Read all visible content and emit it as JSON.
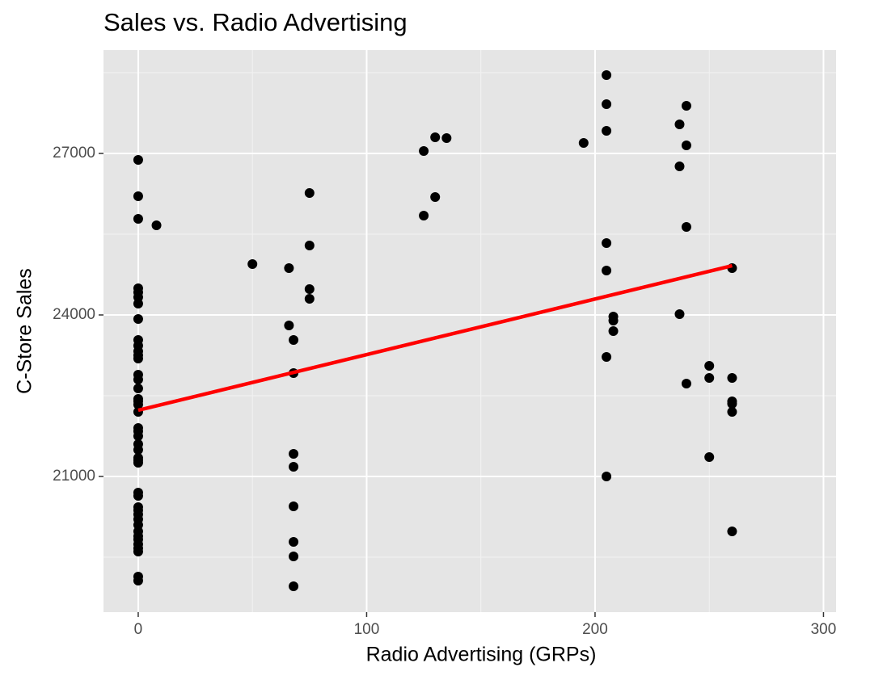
{
  "chart_data": {
    "type": "scatter",
    "title": "Sales vs. Radio Advertising",
    "x_label": "Radio Advertising (GRPs)",
    "y_label": "C-Store Sales",
    "x": [
      0,
      0,
      0,
      0,
      0,
      0,
      0,
      0,
      0,
      0,
      0,
      0,
      0,
      0,
      0,
      0,
      0,
      0,
      0,
      0,
      0,
      0,
      0,
      0,
      0,
      0,
      0,
      0,
      0,
      0,
      0,
      0,
      0,
      0,
      0,
      0,
      0,
      0,
      0,
      0,
      0,
      0,
      0,
      8,
      50,
      66,
      66,
      68,
      68,
      68,
      68,
      68,
      68,
      68,
      68,
      75,
      75,
      75,
      75,
      125,
      125,
      130,
      130,
      135,
      195,
      205,
      205,
      205,
      205,
      205,
      205,
      205,
      208,
      208,
      208,
      237,
      237,
      237,
      240,
      240,
      240,
      240,
      250,
      250,
      250,
      260,
      260,
      260,
      260,
      260,
      260
    ],
    "y": [
      26880,
      26205,
      25785,
      24495,
      24420,
      24330,
      24210,
      23925,
      23535,
      23430,
      23325,
      23250,
      23190,
      22890,
      22800,
      22635,
      22440,
      22395,
      22335,
      22200,
      21900,
      21840,
      21750,
      21600,
      21495,
      21345,
      21300,
      21255,
      20700,
      20640,
      20430,
      20370,
      20295,
      20205,
      20100,
      19980,
      19890,
      19830,
      19740,
      19665,
      19605,
      19140,
      19065,
      25665,
      24945,
      24870,
      23805,
      23535,
      22920,
      21420,
      21180,
      20445,
      19785,
      19515,
      18960,
      26265,
      25290,
      24480,
      24300,
      27045,
      25845,
      27300,
      26190,
      27285,
      27195,
      28455,
      27915,
      27420,
      25335,
      24825,
      23220,
      21000,
      23970,
      23895,
      23700,
      27540,
      26760,
      24015,
      27885,
      27150,
      25635,
      22725,
      23055,
      22830,
      21360,
      24870,
      22830,
      22395,
      22350,
      22200,
      19980
    ],
    "color": "#000000",
    "trend_line": {
      "x": [
        0,
        260
      ],
      "y": [
        22230,
        24915
      ],
      "color": "#ff0000"
    },
    "xlim": [
      -15.2,
      305.5
    ],
    "ylim": [
      18480,
      28920
    ],
    "xticks": [
      0,
      100,
      200,
      300
    ],
    "yticks": [
      21000,
      24000,
      27000
    ],
    "grid": true,
    "minor_grid": true
  }
}
